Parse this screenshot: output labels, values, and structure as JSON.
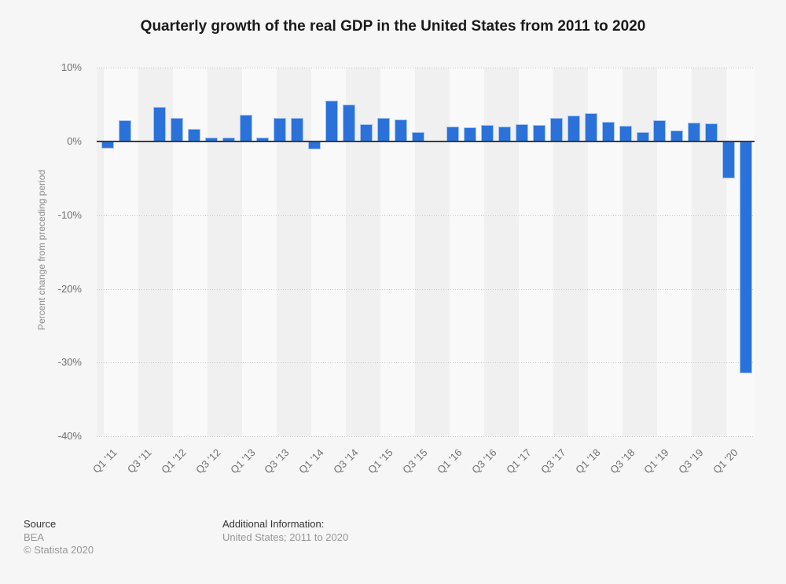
{
  "title": "Quarterly growth of the real GDP in the United States from 2011 to 2020",
  "chart_data": {
    "type": "bar",
    "title": "Quarterly growth of the real GDP in the United States from 2011 to 2020",
    "categories": [
      "Q1 '11",
      "Q2 '11",
      "Q3 '11",
      "Q4 '11",
      "Q1 '12",
      "Q2 '12",
      "Q3 '12",
      "Q4 '12",
      "Q1 '13",
      "Q2 '13",
      "Q3 '13",
      "Q4 '13",
      "Q1 '14",
      "Q2 '14",
      "Q3 '14",
      "Q4 '14",
      "Q1 '15",
      "Q2 '15",
      "Q3 '15",
      "Q4 '15",
      "Q1 '16",
      "Q2 '16",
      "Q3 '16",
      "Q4 '16",
      "Q1 '17",
      "Q2 '17",
      "Q3 '17",
      "Q4 '17",
      "Q1 '18",
      "Q2 '18",
      "Q3 '18",
      "Q4 '18",
      "Q1 '19",
      "Q2 '19",
      "Q3 '19",
      "Q4 '19",
      "Q1 '20",
      "Q2 '20"
    ],
    "values": [
      -1.0,
      2.9,
      -0.1,
      4.7,
      3.2,
      1.7,
      0.5,
      0.5,
      3.6,
      0.5,
      3.2,
      3.2,
      -1.1,
      5.5,
      5.0,
      2.3,
      3.2,
      3.0,
      1.3,
      0.1,
      2.0,
      1.9,
      2.2,
      2.0,
      2.3,
      2.2,
      3.2,
      3.5,
      3.8,
      2.7,
      2.1,
      1.3,
      2.9,
      1.5,
      2.6,
      2.4,
      -5.0,
      -31.4
    ],
    "x_tick_labels": [
      "Q1 '11",
      "Q3 '11",
      "Q1 '12",
      "Q3 '12",
      "Q1 '13",
      "Q3 '13",
      "Q1 '14",
      "Q3 '14",
      "Q1 '15",
      "Q3 '15",
      "Q1 '16",
      "Q3 '16",
      "Q1 '17",
      "Q3 '17",
      "Q1 '18",
      "Q3 '18",
      "Q1 '19",
      "Q3 '19",
      "Q1 '20"
    ],
    "y_ticks": [
      10,
      0,
      -10,
      -20,
      -30,
      -40
    ],
    "y_tick_labels": [
      "10%",
      "0%",
      "-10%",
      "-20%",
      "-30%",
      "-40%"
    ],
    "xlabel": "",
    "ylabel": "Percent change from preceding period",
    "ylim": [
      -40,
      10
    ],
    "legend": "none",
    "grid": "horizontal-dotted",
    "bar_color": "#2a72da",
    "bar_edge_color": "#a6c4ef",
    "baseline_color": "#3b3b3b",
    "gridline_color": "#c6c6c6",
    "band_color_light": "#f9f9fa",
    "band_color_dark": "#f0f0f1",
    "background_color": "#f6f6f7"
  },
  "footer": {
    "source_label": "Source",
    "source_value": "BEA",
    "copyright": "© Statista 2020",
    "additional_label": "Additional Information:",
    "additional_value": "United States; 2011 to 2020"
  }
}
